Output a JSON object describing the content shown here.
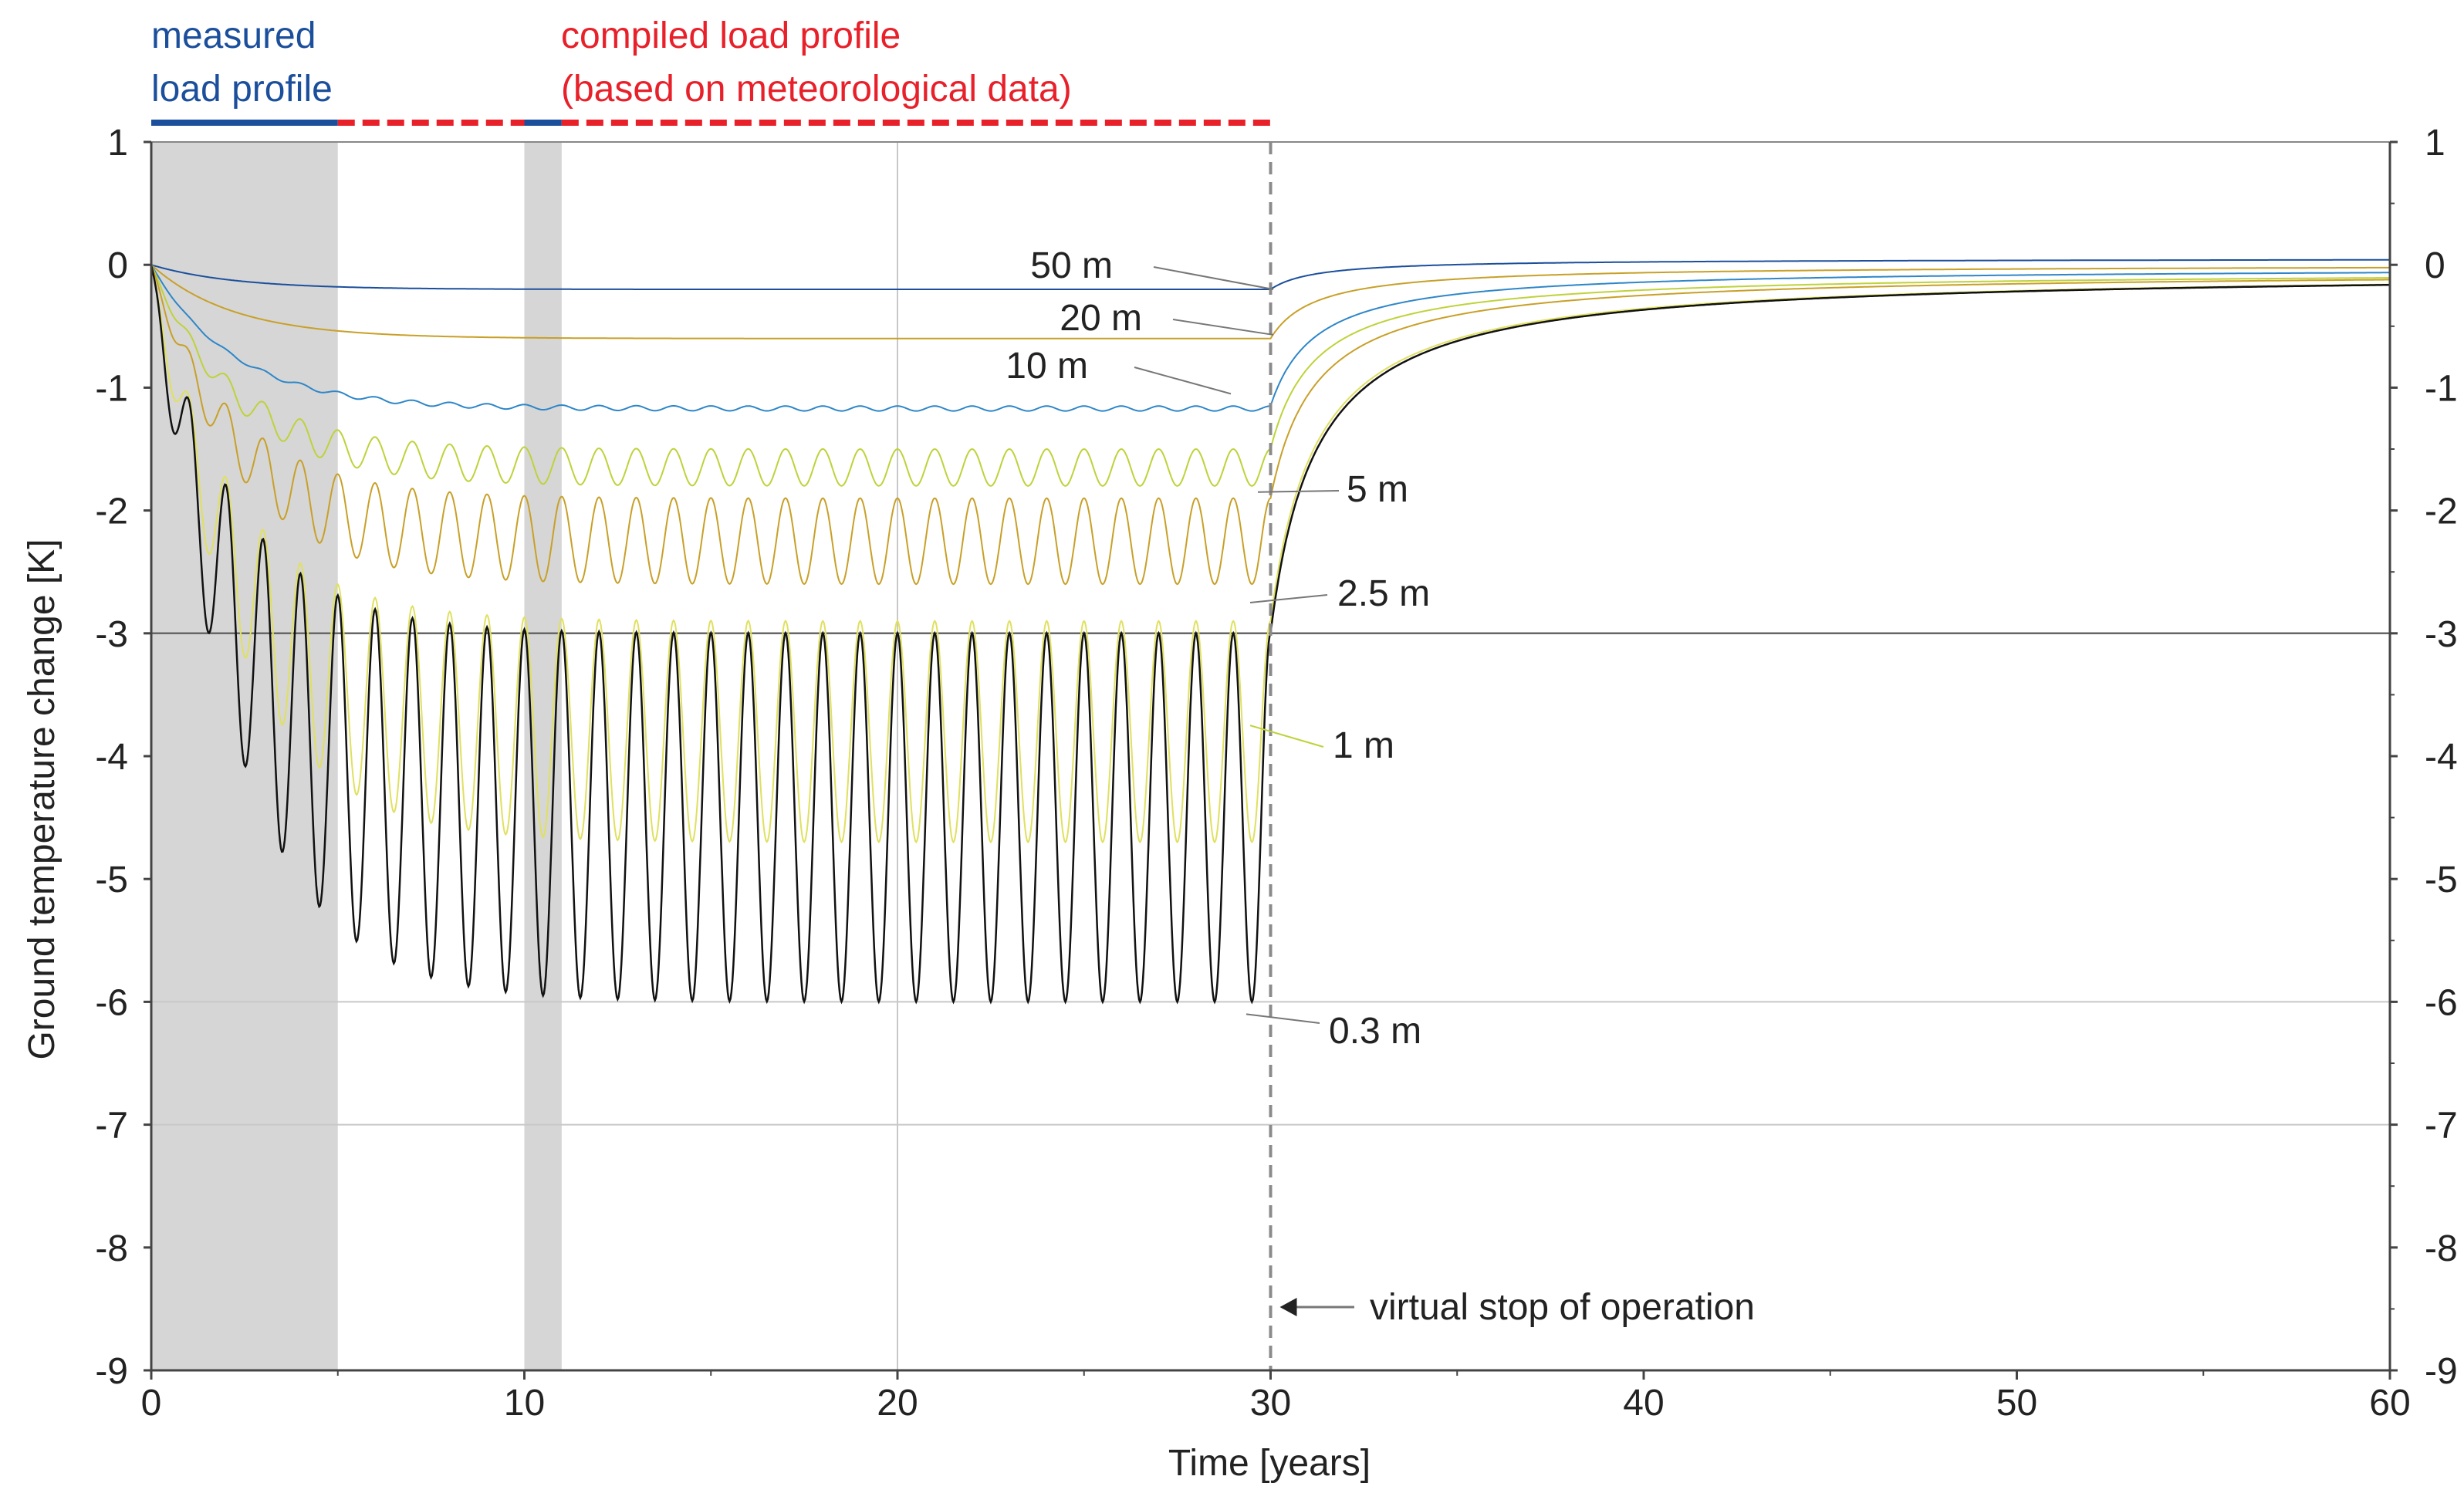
{
  "chart_data": {
    "type": "line",
    "title": "",
    "xlabel": "Time [years]",
    "ylabel": "Ground temperature change [K]",
    "xlim": [
      0,
      60
    ],
    "ylim": [
      -9,
      1
    ],
    "x_ticks": [
      0,
      10,
      20,
      30,
      40,
      50,
      60
    ],
    "y_ticks": [
      1,
      0,
      -1,
      -2,
      -3,
      -4,
      -5,
      -6,
      -7,
      -8,
      -9
    ],
    "gridlines_y": [
      -3,
      -6,
      -7
    ],
    "gridlines_x": [
      20,
      30
    ],
    "shaded_regions": [
      {
        "x0": 0,
        "x1": 5
      },
      {
        "x0": 10,
        "x1": 11
      }
    ],
    "header": {
      "measured_line1": "measured",
      "measured_line2": "load profile",
      "compiled_line1": "compiled load profile",
      "compiled_line2": "(based on meteorological data)",
      "measured_color": "#1b4f9c",
      "compiled_color": "#e8202a",
      "measured_segments": [
        [
          0,
          5
        ],
        [
          10,
          11
        ]
      ],
      "compiled_segments": [
        [
          5,
          10
        ],
        [
          11,
          30
        ]
      ]
    },
    "annotation": {
      "stop_label": "virtual stop of operation",
      "stop_x": 30
    },
    "series": [
      {
        "name": "50 m",
        "color": "#1b4f9c",
        "min_value": -0.2,
        "osc_amplitude": 0,
        "end_value": 0.05
      },
      {
        "name": "20 m",
        "color": "#c8a028",
        "min_value": -0.6,
        "osc_amplitude": 0,
        "end_value": 0.0
      },
      {
        "name": "10 m",
        "color": "#2e86c8",
        "min_value": -1.15,
        "osc_amplitude": 0.04,
        "end_value": -0.02
      },
      {
        "name": "5 m",
        "color": "#bfd23a",
        "min_value": -1.5,
        "osc_amplitude": 0.3,
        "end_value": -0.05
      },
      {
        "name": "2.5 m",
        "color": "#c8a028",
        "min_value": -1.9,
        "osc_amplitude": 0.7,
        "end_value": -0.05
      },
      {
        "name": "1 m",
        "color": "#e0e060",
        "min_value": -2.9,
        "osc_amplitude": 1.8,
        "end_value": -0.05
      },
      {
        "name": "0.3 m",
        "color": "#111111",
        "min_value": -3.0,
        "osc_amplitude": 3.0,
        "end_value": -0.05
      }
    ]
  }
}
